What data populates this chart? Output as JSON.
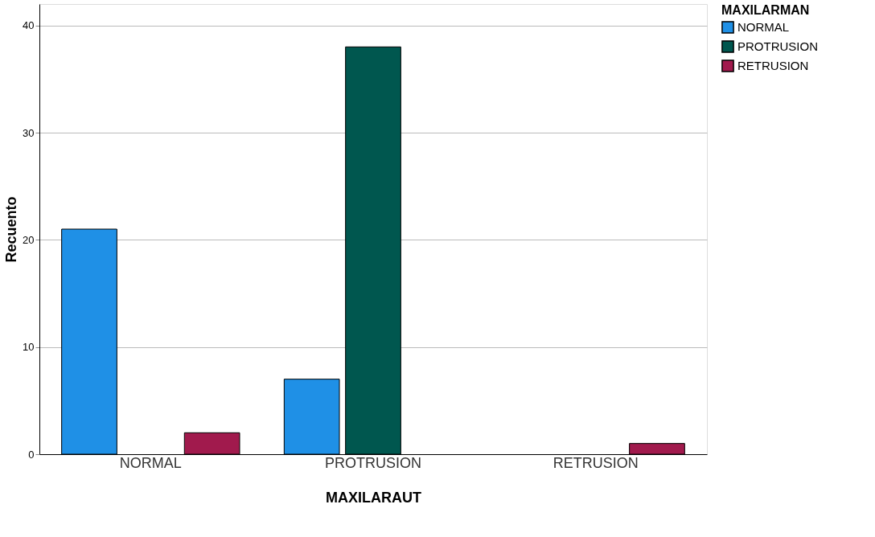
{
  "chart_data": {
    "type": "bar",
    "xlabel": "MAXILARAUT",
    "ylabel": "Recuento",
    "legend_title": "MAXILARMAN",
    "categories": [
      "NORMAL",
      "PROTRUSION",
      "RETRUSION"
    ],
    "series": [
      {
        "name": "NORMAL",
        "color": "#1f90e6",
        "values": [
          21,
          7,
          null
        ]
      },
      {
        "name": "PROTRUSION",
        "color": "#00574f",
        "values": [
          null,
          38,
          null
        ]
      },
      {
        "name": "RETRUSION",
        "color": "#a11a4d",
        "values": [
          2,
          null,
          1
        ]
      }
    ],
    "ylim": [
      0,
      42
    ],
    "yticks": [
      0,
      10,
      20,
      30,
      40
    ],
    "grid": "y",
    "legend": "top right"
  }
}
